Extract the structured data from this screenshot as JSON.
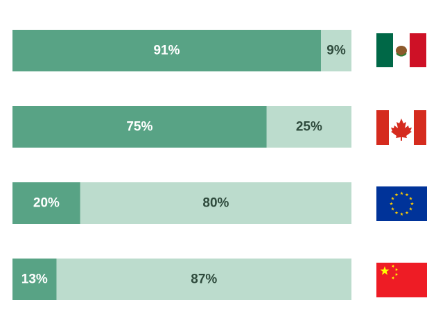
{
  "chart_data": {
    "type": "bar",
    "orientation": "horizontal",
    "stacked": true,
    "categories": [
      null,
      null,
      null,
      null
    ],
    "series": [
      {
        "color": "#58a385",
        "label_color": "#ffffff",
        "values": [
          91,
          75,
          20,
          13
        ],
        "value_labels": [
          "91%",
          "75%",
          "20%",
          "13%"
        ]
      },
      {
        "color": "#bcdccd",
        "label_color": "#2e4a3c",
        "values": [
          9,
          25,
          80,
          87
        ],
        "value_labels": [
          "9%",
          "25%",
          "80%",
          "87%"
        ]
      }
    ]
  }
}
